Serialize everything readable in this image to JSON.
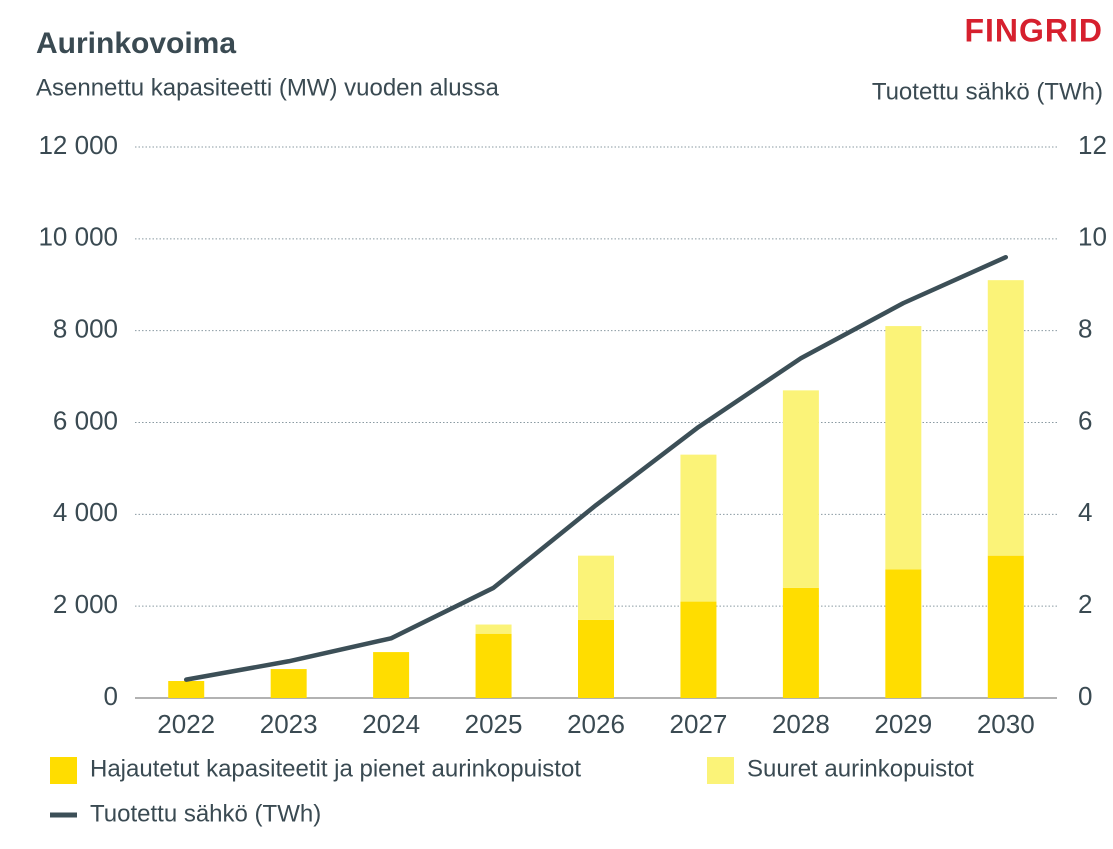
{
  "chart_data": {
    "type": "stacked-bar-line",
    "title": "Aurinkovoima",
    "subtitle": "Asennettu kapasiteetti (MW) vuoden alussa",
    "y2_label": "Tuotettu sähkö (TWh)",
    "logo": "FINGRID",
    "categories": [
      "2022",
      "2023",
      "2024",
      "2025",
      "2026",
      "2027",
      "2028",
      "2029",
      "2030"
    ],
    "series": [
      {
        "name": "Hajautetut kapasiteetit ja pienet aurinkopuistot",
        "color": "#ffdd00",
        "type": "bar",
        "values": [
          370,
          630,
          1000,
          1400,
          1700,
          2100,
          2400,
          2800,
          3100
        ]
      },
      {
        "name": "Suuret aurinkopuistot",
        "color": "#fbf378",
        "type": "bar",
        "values": [
          0,
          0,
          0,
          200,
          1400,
          3200,
          4300,
          5300,
          6000
        ]
      },
      {
        "name": "Tuotettu sähkö (TWh)",
        "color": "#3c4f57",
        "type": "line",
        "axis": "y2",
        "values": [
          0.4,
          0.8,
          1.3,
          2.4,
          4.2,
          5.9,
          7.4,
          8.6,
          9.6
        ]
      }
    ],
    "ylim": [
      0,
      12000
    ],
    "yticks": [
      0,
      {
        "value": 2000,
        "label": "2 000"
      },
      {
        "value": 4000,
        "label": "4 000"
      },
      {
        "value": 6000,
        "label": "6 000"
      },
      {
        "value": 8000,
        "label": "8 000"
      },
      {
        "value": 10000,
        "label": "10 000"
      },
      {
        "value": 12000,
        "label": "12 000"
      }
    ],
    "y2lim": [
      0,
      12
    ],
    "y2ticks": [
      0,
      2,
      4,
      6,
      8,
      10,
      12
    ],
    "grid": true
  }
}
